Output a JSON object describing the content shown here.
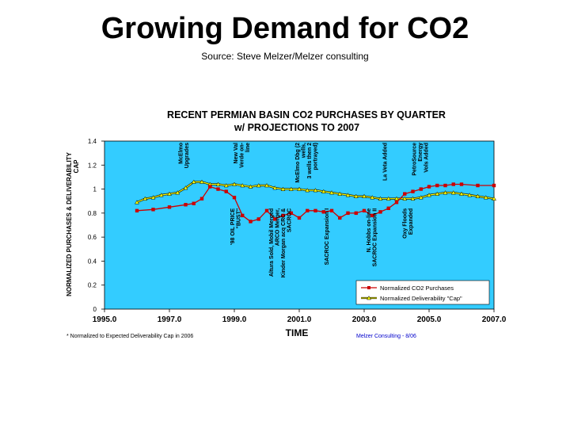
{
  "slide": {
    "title": "Growing Demand for CO2",
    "subtitle": "Source: Steve Melzer/Melzer consulting"
  },
  "chart_data": {
    "type": "line",
    "title_line1": "RECENT PERMIAN BASIN CO2 PURCHASES BY QUARTER",
    "title_line2": "w/ PROJECTIONS TO 2007",
    "xlabel": "TIME",
    "ylabel_line1": "NORMALIZED PURCHASES & DELIVERABILITY",
    "ylabel_line2": "CAP",
    "xlim": [
      1995,
      2007
    ],
    "ylim": [
      0,
      1.4
    ],
    "x_ticks": [
      1995,
      1997,
      1999,
      2001,
      2003,
      2005,
      2007
    ],
    "x_tick_labels": [
      "1995.0",
      "1997.0",
      "1999.0",
      "2001.0",
      "2003.0",
      "2005.0",
      "2007.0"
    ],
    "y_ticks": [
      0,
      0.2,
      0.4,
      0.6,
      0.8,
      1,
      1.2,
      1.4
    ],
    "y_tick_labels": [
      "0",
      "0.2",
      "0.4",
      "0.6",
      "0.8",
      "1",
      "1.2",
      "1.4"
    ],
    "grid": false,
    "legend_position": "bottom-right",
    "colors": {
      "plot_bg": "#33ccff",
      "purchases": "#cc0000",
      "deliverability": "#ffff00",
      "deliverability_outline": "#000000"
    },
    "series": [
      {
        "name": "Normalized CO2 Purchases",
        "marker": "square",
        "points": [
          [
            1996.0,
            0.82
          ],
          [
            1996.5,
            0.83
          ],
          [
            1997.0,
            0.85
          ],
          [
            1997.5,
            0.87
          ],
          [
            1997.75,
            0.88
          ],
          [
            1998.0,
            0.92
          ],
          [
            1998.25,
            1.02
          ],
          [
            1998.5,
            1.0
          ],
          [
            1998.75,
            0.98
          ],
          [
            1999.0,
            0.93
          ],
          [
            1999.25,
            0.78
          ],
          [
            1999.5,
            0.73
          ],
          [
            1999.75,
            0.75
          ],
          [
            2000.0,
            0.82
          ],
          [
            2000.25,
            0.75
          ],
          [
            2000.5,
            0.78
          ],
          [
            2000.75,
            0.8
          ],
          [
            2001.0,
            0.76
          ],
          [
            2001.25,
            0.82
          ],
          [
            2001.5,
            0.82
          ],
          [
            2001.75,
            0.81
          ],
          [
            2002.0,
            0.82
          ],
          [
            2002.25,
            0.76
          ],
          [
            2002.5,
            0.8
          ],
          [
            2002.75,
            0.8
          ],
          [
            2003.0,
            0.82
          ],
          [
            2003.25,
            0.78
          ],
          [
            2003.5,
            0.81
          ],
          [
            2003.75,
            0.84
          ],
          [
            2004.0,
            0.89
          ],
          [
            2004.25,
            0.96
          ],
          [
            2004.5,
            0.98
          ],
          [
            2004.75,
            1.0
          ],
          [
            2005.0,
            1.02
          ],
          [
            2005.25,
            1.03
          ],
          [
            2005.5,
            1.03
          ],
          [
            2005.75,
            1.04
          ],
          [
            2006.0,
            1.04
          ],
          [
            2006.5,
            1.03
          ],
          [
            2007.0,
            1.03
          ]
        ]
      },
      {
        "name": "Normalized Deliverability \"Cap\"",
        "marker": "triangle",
        "points": [
          [
            1996.0,
            0.89
          ],
          [
            1996.25,
            0.92
          ],
          [
            1996.5,
            0.93
          ],
          [
            1996.75,
            0.95
          ],
          [
            1997.0,
            0.96
          ],
          [
            1997.25,
            0.97
          ],
          [
            1997.5,
            1.01
          ],
          [
            1997.75,
            1.06
          ],
          [
            1998.0,
            1.06
          ],
          [
            1998.25,
            1.04
          ],
          [
            1998.5,
            1.04
          ],
          [
            1998.75,
            1.03
          ],
          [
            1999.0,
            1.04
          ],
          [
            1999.25,
            1.03
          ],
          [
            1999.5,
            1.02
          ],
          [
            1999.75,
            1.03
          ],
          [
            2000.0,
            1.03
          ],
          [
            2000.25,
            1.01
          ],
          [
            2000.5,
            1.0
          ],
          [
            2000.75,
            1.0
          ],
          [
            2001.0,
            1.0
          ],
          [
            2001.25,
            0.99
          ],
          [
            2001.5,
            0.99
          ],
          [
            2001.75,
            0.98
          ],
          [
            2002.0,
            0.97
          ],
          [
            2002.25,
            0.96
          ],
          [
            2002.5,
            0.95
          ],
          [
            2002.75,
            0.94
          ],
          [
            2003.0,
            0.94
          ],
          [
            2003.25,
            0.93
          ],
          [
            2003.5,
            0.92
          ],
          [
            2003.75,
            0.92
          ],
          [
            2004.0,
            0.92
          ],
          [
            2004.25,
            0.92
          ],
          [
            2004.5,
            0.92
          ],
          [
            2004.75,
            0.93
          ],
          [
            2005.0,
            0.95
          ],
          [
            2005.25,
            0.96
          ],
          [
            2005.5,
            0.97
          ],
          [
            2005.75,
            0.97
          ],
          [
            2006.0,
            0.96
          ],
          [
            2006.25,
            0.95
          ],
          [
            2006.5,
            0.94
          ],
          [
            2006.75,
            0.93
          ],
          [
            2007.0,
            0.92
          ]
        ]
      }
    ],
    "annotations": [
      {
        "text": "McElmo Upgrades",
        "x": 1997.4,
        "lines": [
          "McElmo",
          "Upgrades"
        ],
        "from_top": true
      },
      {
        "text": "New Val Verde on-line",
        "x": 1999.1,
        "lines": [
          "New Val",
          "Verde on-",
          "line"
        ],
        "from_top": true
      },
      {
        "text": "McElmo Dbg (2 wells, 3 wells then 2 portrayed)",
        "x": 2001.0,
        "lines": [
          "McElmo Dbg (2",
          "wells,",
          "3 wells then 2",
          "portrayed)"
        ],
        "from_top": true
      },
      {
        "text": "La Veta Added",
        "x": 2003.7,
        "lines": [
          "La Veta Added"
        ],
        "from_top": true
      },
      {
        "text": "PetroSource Energy Vols Added",
        "x": 2004.6,
        "lines": [
          "PetroSource",
          "Energy",
          "Vols Added"
        ],
        "from_top": true
      },
      {
        "text": "'98 OIL PRICE \"BUST\"",
        "x": 1999.0,
        "lines": [
          "'98 OIL PRICE",
          "\"BUST\""
        ],
        "from_top": false
      },
      {
        "text": "Altura Sold, Mobil Merged ARCO Merger, Kinder Morgan acq CRC & SACROC",
        "x": 2000.2,
        "lines": [
          "Altura Sold, Mobil Merged",
          "ARCO Merger,",
          "Kinder Morgan acq CRC &",
          "SACROC"
        ],
        "from_top": false
      },
      {
        "text": "SACROC Expansion I",
        "x": 2001.9,
        "lines": [
          "SACROC Expansion I"
        ],
        "from_top": false
      },
      {
        "text": "N. Hobbs on-line, SACROC Expansion II",
        "x": 2003.2,
        "lines": [
          "N. Hobbs on-line",
          "SACROC Expansion II"
        ],
        "from_top": false
      },
      {
        "text": "Oxy Floods Expanded",
        "x": 2004.3,
        "lines": [
          "Oxy Floods",
          "Expanded"
        ],
        "from_top": false
      }
    ],
    "footnote_left": "* Normalized to Expected Deliverability Cap in 2006",
    "footnote_right": "Melzer Consulting - 8/06"
  }
}
